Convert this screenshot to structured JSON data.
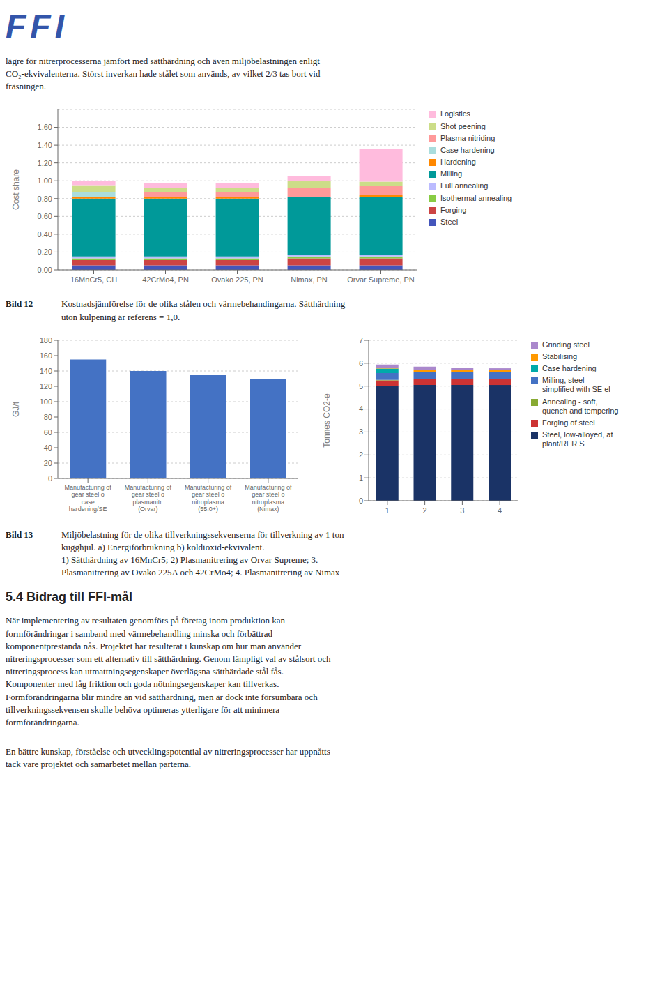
{
  "chart_data": [
    {
      "type": "bar",
      "stacked": true,
      "categories": [
        "16MnCr5, CH",
        "42CrMo4, PN",
        "Ovako 225, PN",
        "Nimax, PN",
        "Orvar Supreme, PN"
      ],
      "ylabel": "Cost share",
      "ylim": [
        0,
        1.8
      ],
      "yticks": [
        {
          "value": 0,
          "label": "0.00"
        },
        {
          "value": 0.2,
          "label": "0.20"
        },
        {
          "value": 0.4,
          "label": "0.40"
        },
        {
          "value": 0.6,
          "label": "0.60"
        },
        {
          "value": 0.8,
          "label": "0.80"
        },
        {
          "value": 1.0,
          "label": "1.00"
        },
        {
          "value": 1.2,
          "label": "1.20"
        },
        {
          "value": 1.4,
          "label": "1.40"
        },
        {
          "value": 1.6,
          "label": "1.60"
        }
      ],
      "grid": true,
      "legend": "right",
      "series": [
        {
          "name": "Steel",
          "color": "#4455bb",
          "values": [
            0.05,
            0.05,
            0.05,
            0.05,
            0.05
          ]
        },
        {
          "name": "Forging",
          "color": "#cc4444",
          "values": [
            0.06,
            0.06,
            0.06,
            0.08,
            0.08
          ]
        },
        {
          "name": "Isothermal annealing",
          "color": "#88cc44",
          "values": [
            0.02,
            0.02,
            0.02,
            0.02,
            0.02
          ]
        },
        {
          "name": "Full annealing",
          "color": "#bbbbff",
          "values": [
            0.02,
            0.02,
            0.02,
            0.02,
            0.02
          ]
        },
        {
          "name": "Milling",
          "color": "#009999",
          "values": [
            0.65,
            0.65,
            0.65,
            0.65,
            0.65
          ]
        },
        {
          "name": "Hardening",
          "color": "#ff8800",
          "values": [
            0.02,
            0.02,
            0.02,
            0.0,
            0.02
          ]
        },
        {
          "name": "Case hardening",
          "color": "#aadddd",
          "values": [
            0.05,
            0.0,
            0.0,
            0.0,
            0.0
          ]
        },
        {
          "name": "Plasma nitriding",
          "color": "#ff9999",
          "values": [
            0.0,
            0.05,
            0.05,
            0.1,
            0.1
          ]
        },
        {
          "name": "Shot peening",
          "color": "#ccdd88",
          "values": [
            0.08,
            0.05,
            0.05,
            0.08,
            0.05
          ]
        },
        {
          "name": "Logistics",
          "color": "#ffbbdd",
          "values": [
            0.05,
            0.05,
            0.05,
            0.05,
            0.37
          ]
        }
      ]
    },
    {
      "type": "bar",
      "categories": [
        "Manufacturing of\ngear steel o\ncase\nhardening/SE",
        "Manufacturing of\ngear steel o\nplasmanitr.\n(Orvar)",
        "Manufacturing of\ngear steel o\nnitroplasma\n(55.0+)",
        "Manufacturing of\ngear steel o\nnitroplasma\n(Nimax)"
      ],
      "values": [
        155,
        140,
        135,
        130
      ],
      "color": "#4472c4",
      "ylabel": "GJ/t",
      "ylim": [
        0,
        180
      ],
      "yticks": [
        0,
        20,
        40,
        60,
        80,
        100,
        120,
        140,
        160,
        180
      ],
      "grid": true
    },
    {
      "type": "bar",
      "stacked": true,
      "categories": [
        "1",
        "2",
        "3",
        "4"
      ],
      "ylabel": "Tonnes CO2-e",
      "ylim": [
        0,
        7
      ],
      "yticks": [
        0,
        1,
        2,
        3,
        4,
        5,
        6,
        7
      ],
      "grid": true,
      "legend": "right",
      "series": [
        {
          "name": "Steel, low-alloyed, at\nplant/RER S",
          "color": "#1a3366",
          "values": [
            5.0,
            5.05,
            5.05,
            5.05
          ]
        },
        {
          "name": "Forging of steel",
          "color": "#cc3333",
          "values": [
            0.25,
            0.25,
            0.25,
            0.25
          ]
        },
        {
          "name": "Annealing - soft,\nquench and tempering",
          "color": "#88aa33",
          "values": [
            0.02,
            0.02,
            0.02,
            0.02
          ]
        },
        {
          "name": "Milling, steel\nsimplified with SE el",
          "color": "#4472c4",
          "values": [
            0.3,
            0.3,
            0.3,
            0.3
          ]
        },
        {
          "name": "Case hardening",
          "color": "#00aaaa",
          "values": [
            0.2,
            0.0,
            0.0,
            0.0
          ]
        },
        {
          "name": "Stabilising",
          "color": "#ff9900",
          "values": [
            0.02,
            0.08,
            0.08,
            0.08
          ]
        },
        {
          "name": "Grinding steel",
          "color": "#aa88cc",
          "values": [
            0.15,
            0.15,
            0.08,
            0.08
          ]
        }
      ]
    }
  ],
  "annotations": [
    {
      "text": "FFI",
      "color": "#3355aa"
    },
    {
      "text": "lägre för nitrerprocesserna jämfört med sätthärdning och även miljöbelastningen enligt\nCO₂-ekvivalenterna. Störst inverkan hade stålet som används, av vilket 2/3 tas bort vid\nfräsningen."
    },
    {
      "text": "Bild 12"
    },
    {
      "text": "Kostnadsjämförelse för de olika stålen och värmebehandingarna. Sätthärdning\nuton kulpening är referens = 1,0."
    },
    {
      "text": "Bild 13"
    },
    {
      "text": "Miljöbelastning för de olika tillverkningssekvenserna för tillverkning av 1 ton\nkugghjul. a) Energiförbrukning b) koldioxid-ekvivalent.\n1) Sätthärdning av 16MnCr5; 2) Plasmanitrering av Orvar Supreme; 3.\nPlasmanitrering av Ovako 225A och 42CrMo4; 4. Plasmanitrering av Nimax"
    },
    {
      "text": "5.4 Bidrag till FFI-mål"
    },
    {
      "text": "När implementering av resultaten genomförs på företag inom produktion kan\nformförändringar i samband med värmebehandling minska och förbättrad\nkomponentprestanda nås. Projektet har resulterat i kunskap om hur man använder\nnitreringsprocesser som ett alternativ till sätthärdning. Genom lämpligt val av stålsort och\nnitreringsprocess kan utmattningsegenskaper överlägsna sätthärdade stål fås.\nKomponenter med låg friktion och goda nötningsegenskaper kan tillverkas.\nFormförändringarna blir mindre än vid sätthärdning, men är dock inte försumbara och\ntillverkningssekvensen skulle behöva optimeras ytterligare för att minimera\nformförändringarna."
    },
    {
      "text": "En bättre kunskap, förståelse och utvecklingspotential av nitreringsprocesser har uppnåtts\ntack vare projektet och samarbetet mellan parterna."
    }
  ]
}
